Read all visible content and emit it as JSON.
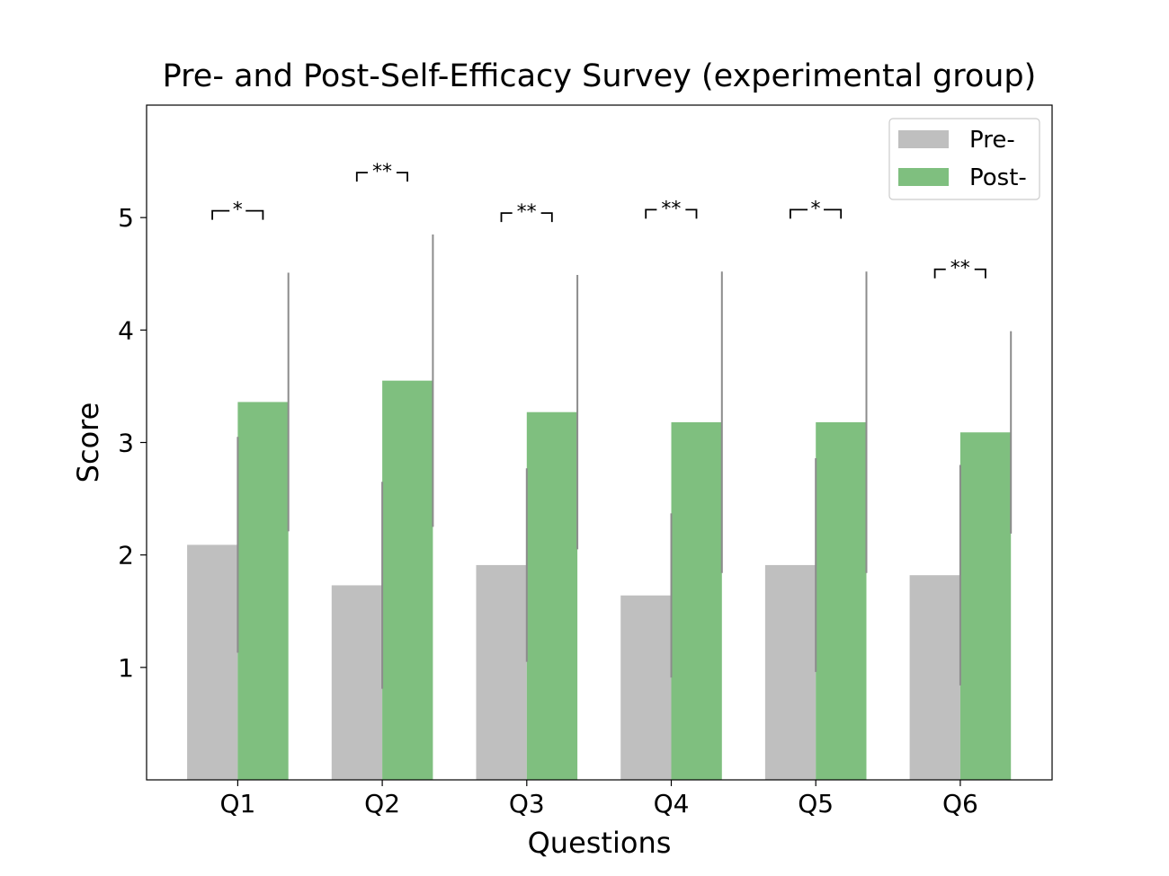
{
  "chart_data": {
    "type": "bar",
    "title": "Pre- and Post-Self-Efficacy Survey (experimental group)",
    "xlabel": "Questions",
    "ylabel": "Score",
    "ylim": [
      0,
      6
    ],
    "yticks": [
      1,
      2,
      3,
      4,
      5
    ],
    "categories": [
      "Q1",
      "Q2",
      "Q3",
      "Q4",
      "Q5",
      "Q6"
    ],
    "series": [
      {
        "name": "Pre-",
        "color": "#bfbfbf",
        "values": [
          2.09,
          1.73,
          1.91,
          1.64,
          1.91,
          1.82
        ],
        "errors": [
          0.96,
          0.92,
          0.86,
          0.73,
          0.95,
          0.98
        ]
      },
      {
        "name": "Post-",
        "color": "#7fbf7f",
        "values": [
          3.36,
          3.55,
          3.27,
          3.18,
          3.18,
          3.09
        ],
        "errors": [
          1.15,
          1.3,
          1.22,
          1.34,
          1.34,
          0.9
        ]
      }
    ],
    "significance": [
      "*",
      "**",
      "**",
      "**",
      "*",
      "**"
    ],
    "legend": {
      "position": "top-right",
      "entries": [
        "Pre-",
        "Post-"
      ]
    },
    "grid": false
  }
}
